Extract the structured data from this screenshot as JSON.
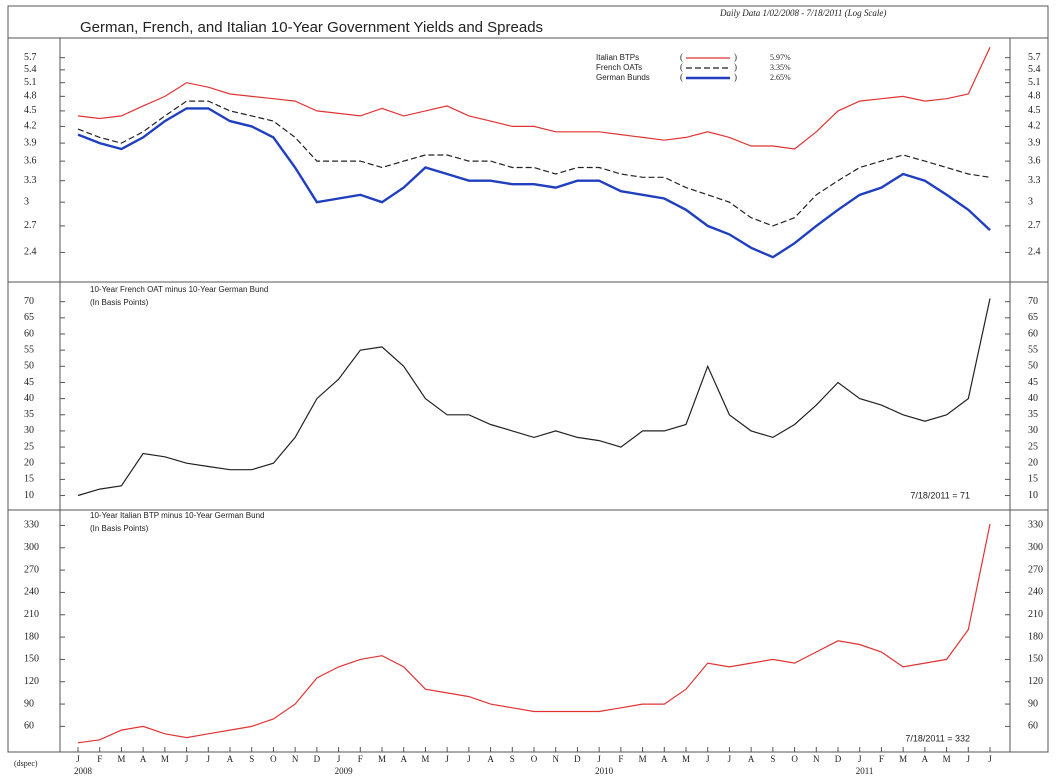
{
  "chart_data": [
    {
      "type": "line",
      "title": "German, French, and Italian 10-Year Government Yields and Spreads",
      "subtitle": "Daily Data 1/02/2008 - 7/18/2011 (Log Scale)",
      "log": true,
      "ylim": [
        2.2,
        5.95
      ],
      "yticks": [
        2.4,
        2.7,
        3.0,
        3.3,
        3.6,
        3.9,
        4.2,
        4.5,
        4.8,
        5.1,
        5.4,
        5.7
      ],
      "series": [
        {
          "name": "Italian BTPs",
          "color": "#e03434",
          "dash": false,
          "width": 1.2,
          "last_label": "5.97%",
          "values": [
            4.4,
            4.35,
            4.4,
            4.6,
            4.8,
            5.1,
            5.0,
            4.85,
            4.8,
            4.75,
            4.7,
            4.5,
            4.45,
            4.4,
            4.55,
            4.4,
            4.5,
            4.6,
            4.4,
            4.3,
            4.2,
            4.2,
            4.1,
            4.1,
            4.1,
            4.05,
            4.0,
            3.95,
            4.0,
            4.1,
            4.0,
            3.85,
            3.85,
            3.8,
            4.1,
            4.5,
            4.7,
            4.75,
            4.8,
            4.7,
            4.75,
            4.85,
            5.97
          ]
        },
        {
          "name": "French OATs",
          "color": "#222222",
          "dash": true,
          "width": 1.2,
          "last_label": "3.35%",
          "values": [
            4.15,
            4.0,
            3.9,
            4.1,
            4.4,
            4.7,
            4.7,
            4.5,
            4.4,
            4.3,
            4.0,
            3.6,
            3.6,
            3.6,
            3.5,
            3.6,
            3.7,
            3.7,
            3.6,
            3.6,
            3.5,
            3.5,
            3.4,
            3.5,
            3.5,
            3.4,
            3.35,
            3.35,
            3.2,
            3.1,
            3.0,
            2.8,
            2.7,
            2.8,
            3.1,
            3.3,
            3.5,
            3.6,
            3.7,
            3.6,
            3.5,
            3.4,
            3.35
          ]
        },
        {
          "name": "German Bunds",
          "color": "#1f3fbf",
          "dash": false,
          "width": 2.4,
          "last_label": "2.65%",
          "values": [
            4.05,
            3.9,
            3.8,
            4.0,
            4.3,
            4.55,
            4.55,
            4.3,
            4.2,
            4.0,
            3.5,
            3.0,
            3.05,
            3.1,
            3.0,
            3.2,
            3.5,
            3.4,
            3.3,
            3.3,
            3.25,
            3.25,
            3.2,
            3.3,
            3.3,
            3.15,
            3.1,
            3.05,
            2.9,
            2.7,
            2.6,
            2.45,
            2.35,
            2.5,
            2.7,
            2.9,
            3.1,
            3.2,
            3.4,
            3.3,
            3.1,
            2.9,
            2.65
          ]
        }
      ]
    },
    {
      "type": "line",
      "label_color": "#222222",
      "annotations": [
        "10-Year French OAT minus 10-Year German Bund",
        "(In Basis Points)"
      ],
      "last_note": "7/18/2011 = 71",
      "ylim": [
        8,
        73
      ],
      "yticks": [
        10,
        15,
        20,
        25,
        30,
        35,
        40,
        45,
        50,
        55,
        60,
        65,
        70
      ],
      "series": [
        {
          "color": "#222222",
          "width": 1.2,
          "values": [
            10,
            12,
            13,
            23,
            22,
            20,
            19,
            18,
            18,
            20,
            28,
            40,
            46,
            55,
            56,
            50,
            40,
            35,
            35,
            32,
            30,
            28,
            30,
            28,
            27,
            25,
            30,
            30,
            32,
            50,
            35,
            30,
            28,
            32,
            38,
            45,
            40,
            38,
            35,
            33,
            35,
            40,
            71
          ]
        }
      ]
    },
    {
      "type": "line",
      "label_color": "#e03434",
      "annotations": [
        "10-Year Italian BTP minus 10-Year German Bund",
        "(In Basis Points)"
      ],
      "last_note": "7/18/2011 = 332",
      "ylim": [
        35,
        340
      ],
      "yticks": [
        60,
        90,
        120,
        150,
        180,
        210,
        240,
        270,
        300,
        330
      ],
      "series": [
        {
          "color": "#e03434",
          "width": 1.2,
          "values": [
            38,
            42,
            55,
            60,
            50,
            45,
            50,
            55,
            60,
            70,
            90,
            125,
            140,
            150,
            155,
            140,
            110,
            105,
            100,
            90,
            85,
            80,
            80,
            80,
            80,
            85,
            90,
            90,
            110,
            145,
            140,
            145,
            150,
            145,
            160,
            175,
            170,
            160,
            140,
            145,
            150,
            190,
            332
          ]
        }
      ],
      "categories": [
        "J",
        "F",
        "M",
        "A",
        "M",
        "J",
        "J",
        "A",
        "S",
        "O",
        "N",
        "D",
        "J",
        "F",
        "M",
        "A",
        "M",
        "J",
        "J",
        "A",
        "S",
        "O",
        "N",
        "D",
        "J",
        "F",
        "M",
        "A",
        "M",
        "J",
        "J",
        "A",
        "S",
        "O",
        "N",
        "D",
        "J",
        "F",
        "M",
        "A",
        "M",
        "J",
        "J"
      ],
      "years": [
        "2008",
        "2009",
        "2010",
        "2011"
      ],
      "source": "(dspec)"
    }
  ]
}
